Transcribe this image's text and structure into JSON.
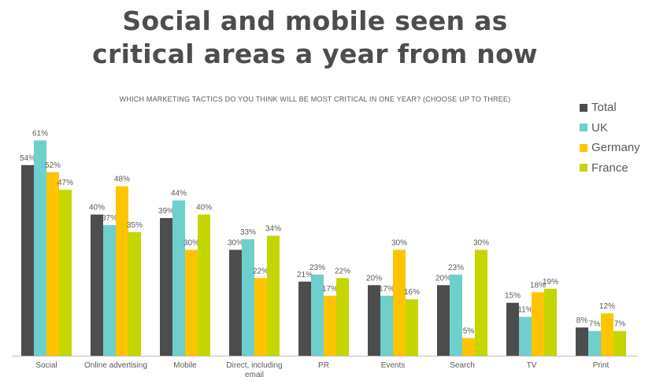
{
  "title_line1": "Social and mobile seen as",
  "title_line2": "critical areas a year from now",
  "chart_data": {
    "type": "bar",
    "subtitle": "WHICH MARKETING TACTICS DO YOU THINK WILL BE MOST CRITICAL IN ONE YEAR? (CHOOSE UP TO THREE)",
    "categories": [
      [
        "Social"
      ],
      [
        "Online advertising"
      ],
      [
        "Mobile"
      ],
      [
        "Direct, including",
        "email"
      ],
      [
        "PR"
      ],
      [
        "Events"
      ],
      [
        "Search"
      ],
      [
        "TV"
      ],
      [
        "Print"
      ]
    ],
    "series": [
      {
        "name": "Total",
        "color": "#4d4d4d",
        "values": [
          54,
          40,
          39,
          30,
          21,
          20,
          20,
          15,
          8
        ]
      },
      {
        "name": "UK",
        "color": "#6ecfcc",
        "values": [
          61,
          37,
          44,
          33,
          23,
          17,
          23,
          11,
          7
        ]
      },
      {
        "name": "Germany",
        "color": "#ffc400",
        "values": [
          52,
          48,
          30,
          22,
          17,
          30,
          5,
          18,
          12
        ]
      },
      {
        "name": "France",
        "color": "#c4d600",
        "values": [
          47,
          35,
          40,
          34,
          22,
          16,
          30,
          19,
          7
        ]
      }
    ],
    "value_suffix": "%",
    "ylim": [
      0,
      68
    ],
    "legend_position": "top-right",
    "grid": false
  }
}
